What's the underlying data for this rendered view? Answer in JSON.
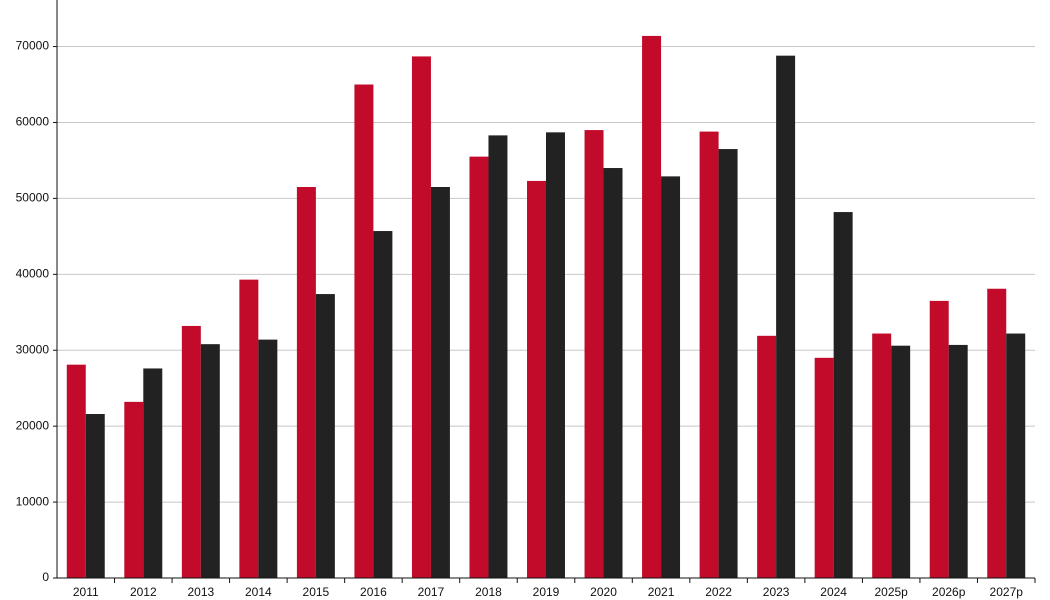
{
  "chart_data": {
    "type": "bar",
    "categories": [
      "2011",
      "2012",
      "2013",
      "2014",
      "2015",
      "2016",
      "2017",
      "2018",
      "2019",
      "2020",
      "2021",
      "2022",
      "2023",
      "2024",
      "2025p",
      "2026p",
      "2027p"
    ],
    "series": [
      {
        "color": "#c20a2a",
        "values": [
          28100,
          23200,
          33200,
          39300,
          51500,
          65000,
          68700,
          55500,
          52300,
          59000,
          71400,
          58800,
          31900,
          29000,
          32200,
          36500,
          38100
        ]
      },
      {
        "color": "#222222",
        "values": [
          21600,
          27600,
          30800,
          31400,
          37400,
          45700,
          51500,
          58300,
          58700,
          54000,
          52900,
          56500,
          68800,
          48200,
          30600,
          30700,
          32200
        ]
      }
    ],
    "ylim": [
      0,
      76000
    ],
    "yticks": [
      0,
      10000,
      20000,
      30000,
      40000,
      50000,
      60000,
      70000
    ],
    "grid": true
  }
}
